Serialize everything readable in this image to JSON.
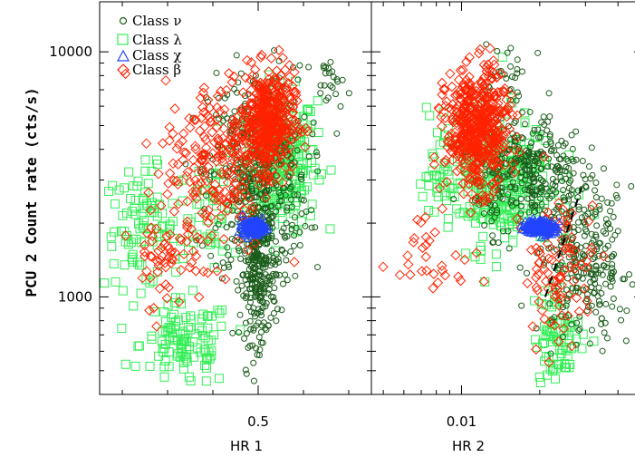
{
  "chart_data": {
    "type": "scatter",
    "ylabel": "PCU 2 Count rate (cts/s)",
    "yscale": "log",
    "ylim": [
      400,
      16000
    ],
    "yticks": [
      {
        "value": 1000,
        "label": "1000"
      },
      {
        "value": 10000,
        "label": "10000"
      }
    ],
    "legend": {
      "placement": "top-left",
      "entries": [
        {
          "label": "Class ν",
          "marker": "circle",
          "color": "#1a5c1a"
        },
        {
          "label": "Class λ",
          "marker": "square",
          "color": "#33ee55"
        },
        {
          "label": "Class χ",
          "marker": "triangle",
          "color": "#2244ff"
        },
        {
          "label": "Class β",
          "marker": "diamond",
          "color": "#ff2200"
        }
      ]
    },
    "panels": [
      {
        "xlabel": "HR 1",
        "xscale": "linear",
        "xlim": [
          0.15,
          0.75
        ],
        "xticks": [
          {
            "value": 0.5,
            "label": "0.5"
          }
        ],
        "clusters": [
          {
            "class": "nu",
            "cx": 0.5,
            "cy": 3100,
            "sx": 0.055,
            "sy": 0.22,
            "n": 420
          },
          {
            "class": "nu",
            "cx": 0.5,
            "cy": 1250,
            "sx": 0.02,
            "sy": 0.14,
            "n": 260
          },
          {
            "class": "nu",
            "cx": 0.66,
            "cy": 7500,
            "sx": 0.015,
            "sy": 0.06,
            "n": 22
          },
          {
            "class": "lambda",
            "cx": 0.55,
            "cy": 3600,
            "sx": 0.04,
            "sy": 0.14,
            "n": 260
          },
          {
            "class": "lambda",
            "cx": 0.24,
            "cy": 1900,
            "sx": 0.04,
            "sy": 0.12,
            "n": 90
          },
          {
            "class": "lambda",
            "cx": 0.34,
            "cy": 640,
            "sx": 0.05,
            "sy": 0.09,
            "n": 110
          },
          {
            "class": "lambda",
            "cx": 0.4,
            "cy": 2300,
            "sx": 0.05,
            "sy": 0.1,
            "n": 60
          },
          {
            "class": "beta",
            "cx": 0.52,
            "cy": 5200,
            "sx": 0.03,
            "sy": 0.1,
            "n": 420
          },
          {
            "class": "beta",
            "cx": 0.41,
            "cy": 3400,
            "sx": 0.06,
            "sy": 0.18,
            "n": 200
          },
          {
            "class": "beta",
            "cx": 0.3,
            "cy": 1600,
            "sx": 0.04,
            "sy": 0.12,
            "n": 60
          },
          {
            "class": "chi",
            "cx": 0.49,
            "cy": 1920,
            "sx": 0.012,
            "sy": 0.015,
            "n": 220
          }
        ]
      },
      {
        "xlabel": "HR 2",
        "xscale": "log",
        "xlim": [
          0.0045,
          0.05
        ],
        "xticks": [
          {
            "value": 0.01,
            "label": "0.01"
          }
        ],
        "clusters": [
          {
            "class": "nu",
            "cx": 0.018,
            "cy": 3200,
            "sx": 0.1,
            "sy": 0.12,
            "n": 320
          },
          {
            "class": "nu",
            "cx": 0.03,
            "cy": 1400,
            "sx": 0.09,
            "sy": 0.16,
            "n": 260
          },
          {
            "class": "nu",
            "cx": 0.015,
            "cy": 8200,
            "sx": 0.05,
            "sy": 0.06,
            "n": 24
          },
          {
            "class": "lambda",
            "cx": 0.013,
            "cy": 3000,
            "sx": 0.12,
            "sy": 0.14,
            "n": 320
          },
          {
            "class": "lambda",
            "cx": 0.024,
            "cy": 700,
            "sx": 0.05,
            "sy": 0.1,
            "n": 80
          },
          {
            "class": "beta",
            "cx": 0.0115,
            "cy": 4800,
            "sx": 0.06,
            "sy": 0.12,
            "n": 520
          },
          {
            "class": "beta",
            "cx": 0.008,
            "cy": 1500,
            "sx": 0.08,
            "sy": 0.08,
            "n": 30
          },
          {
            "class": "beta",
            "cx": 0.024,
            "cy": 1300,
            "sx": 0.07,
            "sy": 0.14,
            "n": 90
          },
          {
            "class": "chi",
            "cx": 0.02,
            "cy": 1930,
            "sx": 0.03,
            "sy": 0.015,
            "n": 220
          }
        ],
        "divider": {
          "x": [
            0.021,
            0.029
          ],
          "y": [
            1000,
            2800
          ],
          "style": "dashed"
        }
      }
    ]
  }
}
